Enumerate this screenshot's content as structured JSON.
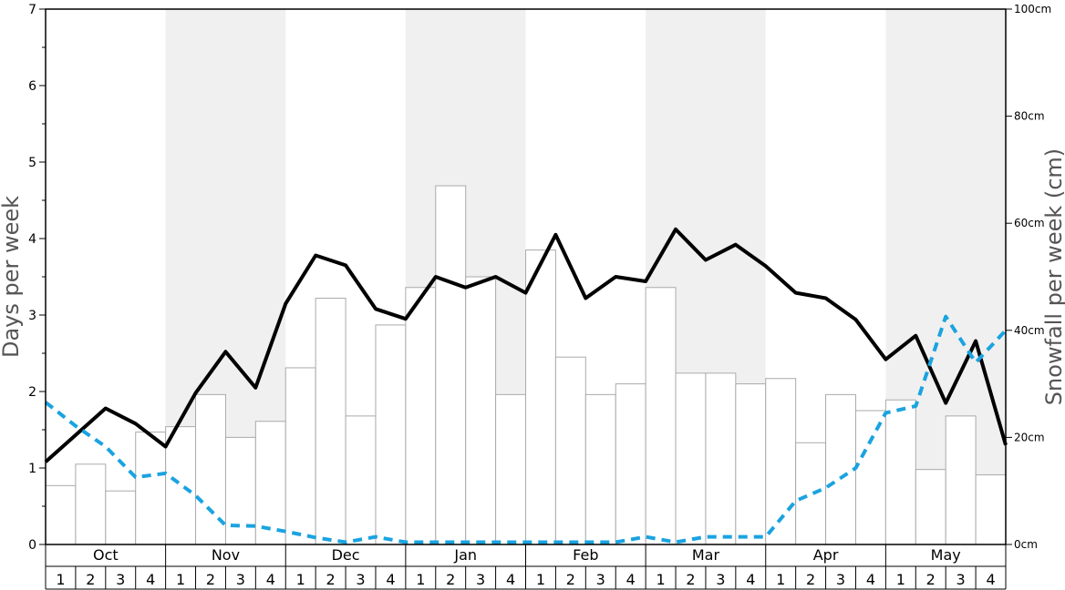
{
  "chart_data": {
    "type": "bar",
    "ylabel_left": "Days per week",
    "ylabel_right": "Snowfall per week (cm)",
    "ylim_left": [
      0,
      7
    ],
    "yticks_left": [
      "0",
      "1",
      "2",
      "3",
      "4",
      "5",
      "6",
      "7"
    ],
    "ylim_right_cm": [
      0,
      100
    ],
    "yticks_right": [
      "0cm",
      "20cm",
      "40cm",
      "60cm",
      "80cm",
      "100cm"
    ],
    "months": [
      "Oct",
      "Nov",
      "Dec",
      "Jan",
      "Feb",
      "Mar",
      "Apr",
      "May"
    ],
    "weeks": [
      "1",
      "2",
      "3",
      "4"
    ],
    "shaded_months": [
      "Nov",
      "Jan",
      "Mar",
      "May"
    ],
    "colors": {
      "bar_fill": "#ffffff",
      "bar_stroke": "#aaaaaa",
      "shade": "#f0f0f0",
      "line_solid": "#000000",
      "line_dashed": "#1aa3e0"
    },
    "series": [
      {
        "kind": "bar",
        "axis": "right",
        "values": [
          11,
          15,
          10,
          21,
          22,
          28,
          20,
          23,
          33,
          46,
          24,
          41,
          48,
          67,
          50,
          28,
          55,
          35,
          28,
          30,
          48,
          32,
          32,
          30,
          31,
          19,
          28,
          25,
          27,
          14,
          24,
          13
        ]
      },
      {
        "kind": "line",
        "style": "solid",
        "axis": "left",
        "values": [
          1.08,
          1.43,
          1.78,
          1.58,
          1.28,
          1.98,
          2.52,
          2.05,
          3.15,
          3.78,
          3.65,
          3.08,
          2.95,
          3.5,
          3.36,
          3.5,
          3.29,
          4.05,
          3.22,
          3.5,
          3.44,
          4.12,
          3.72,
          3.92,
          3.64,
          3.29,
          3.22,
          2.94,
          2.42,
          2.73,
          1.85,
          2.66,
          1.3
        ]
      },
      {
        "kind": "line",
        "style": "dashed",
        "axis": "left",
        "values": [
          1.86,
          1.55,
          1.28,
          0.88,
          0.93,
          0.64,
          0.25,
          0.24,
          0.17,
          0.09,
          0.03,
          0.1,
          0.03,
          0.03,
          0.03,
          0.03,
          0.03,
          0.03,
          0.03,
          0.03,
          0.1,
          0.03,
          0.1,
          0.1,
          0.1,
          0.57,
          0.74,
          1.0,
          1.72,
          1.81,
          2.98,
          2.38,
          2.8
        ]
      }
    ]
  }
}
